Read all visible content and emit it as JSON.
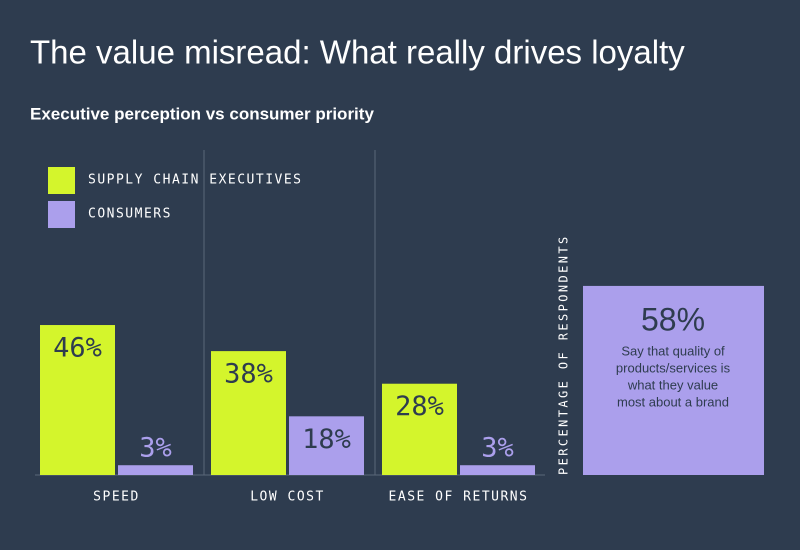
{
  "chart_data": {
    "type": "bar",
    "title": "The value misread: What really drives loyalty",
    "subtitle": "Executive perception vs consumer priority",
    "categories": [
      "SPEED",
      "LOW COST",
      "EASE OF RETURNS"
    ],
    "series": [
      {
        "name": "SUPPLY CHAIN EXECUTIVES",
        "color": "#d4f52c",
        "values": [
          46,
          38,
          28
        ],
        "value_labels": [
          "46%",
          "38%",
          "28%"
        ]
      },
      {
        "name": "CONSUMERS",
        "color": "#ab9fec",
        "values": [
          3,
          18,
          3
        ],
        "value_labels": [
          "3%",
          "18%",
          "3%"
        ]
      }
    ],
    "ylim": [
      0,
      100
    ],
    "y_axis_label": "PERCENTAGE OF RESPONDENTS",
    "callout": {
      "value": 58,
      "value_label": "58%",
      "color": "#ab9fec",
      "lines": [
        "Say that quality of",
        "products/services is",
        "what they value",
        "most about a brand"
      ]
    }
  }
}
